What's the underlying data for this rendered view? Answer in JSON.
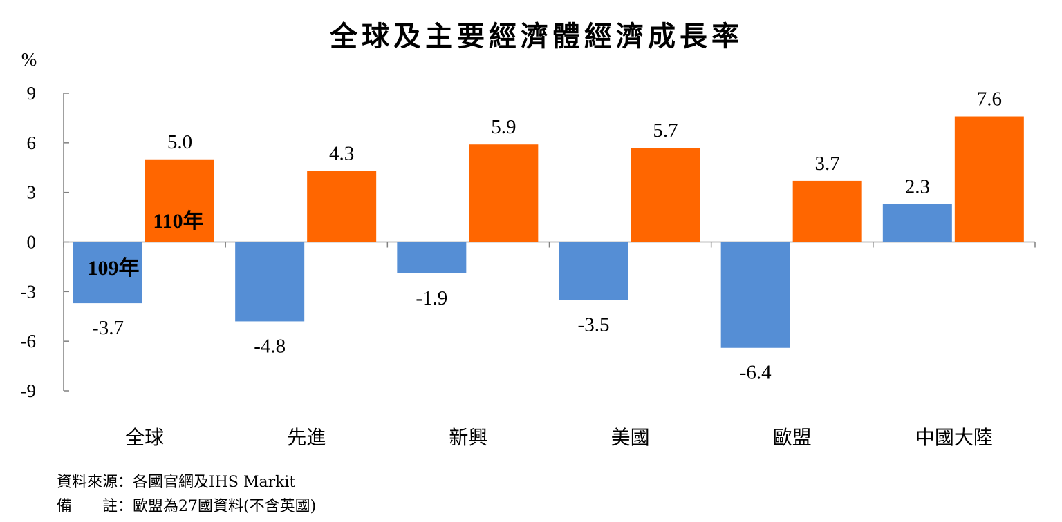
{
  "chart_data": {
    "type": "bar",
    "title": "全球及主要經濟體經濟成長率",
    "ylabel": "%",
    "ylim": [
      -9,
      9
    ],
    "yticks": [
      9,
      6,
      3,
      0,
      -3,
      -6,
      -9
    ],
    "yticks_labels": [
      "9",
      "6",
      "3",
      "0",
      "-3",
      "-6",
      "-9"
    ],
    "categories": [
      "全球",
      "先進",
      "新興",
      "美國",
      "歐盟",
      "中國大陸"
    ],
    "series": [
      {
        "name": "109年",
        "color": "#558ED5",
        "values": [
          -3.7,
          -4.8,
          -1.9,
          -3.5,
          -6.4,
          2.3
        ],
        "value_labels": [
          "-3.7",
          "-4.8",
          "-1.9",
          "-3.5",
          "-6.4",
          "2.3"
        ]
      },
      {
        "name": "110年",
        "color": "#FF6600",
        "values": [
          5.0,
          4.3,
          5.9,
          5.7,
          3.7,
          7.6
        ],
        "value_labels": [
          "5.0",
          "4.3",
          "5.9",
          "5.7",
          "3.7",
          "7.6"
        ]
      }
    ],
    "legend": "inline-on-first-bars",
    "grid": false
  },
  "notes": {
    "source": "資料來源：各國官網及IHS Markit",
    "remark": "備　　註：歐盟為27國資料(不含英國)"
  }
}
